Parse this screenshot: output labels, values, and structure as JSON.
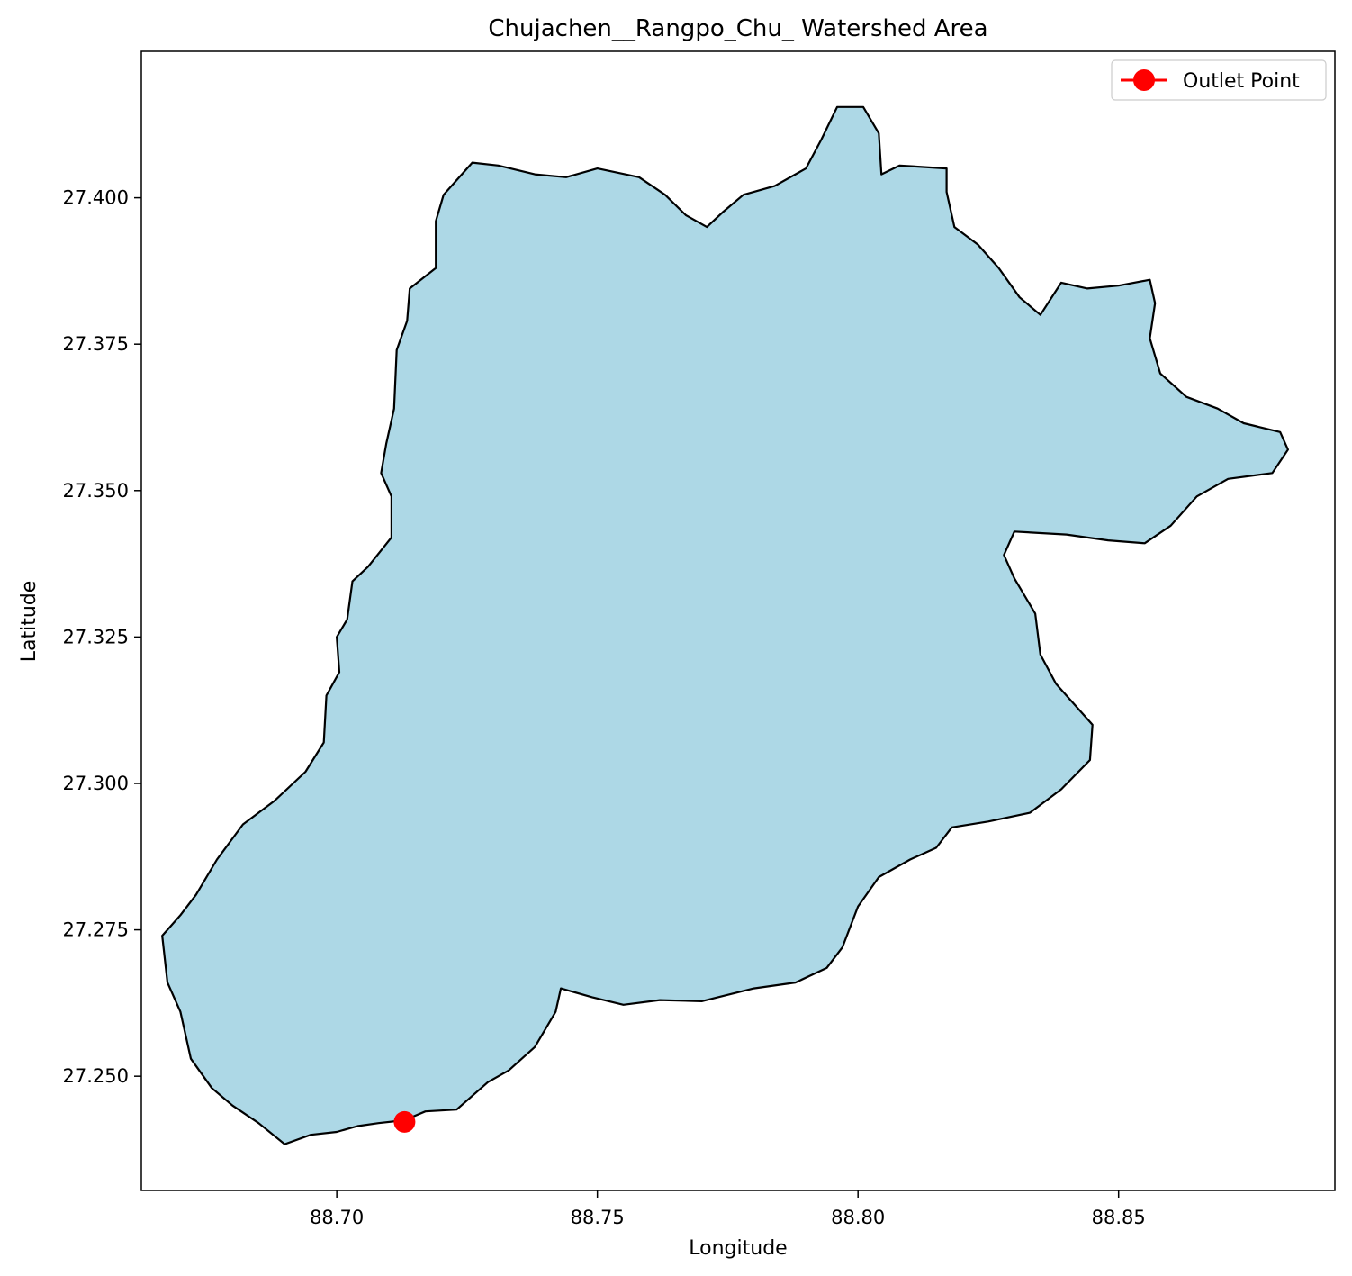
{
  "chart_data": {
    "type": "map",
    "title": "Chujachen__Rangpo_Chu_ Watershed Area",
    "xlabel": "Longitude",
    "ylabel": "Latitude",
    "xlim": [
      88.6625,
      88.8915
    ],
    "ylim": [
      27.2305,
      27.425
    ],
    "x_ticks": [
      88.7,
      88.75,
      88.8,
      88.85
    ],
    "x_tick_labels": [
      "88.70",
      "88.75",
      "88.80",
      "88.85"
    ],
    "y_ticks": [
      27.25,
      27.275,
      27.3,
      27.325,
      27.35,
      27.375,
      27.4
    ],
    "y_tick_labels": [
      "27.250",
      "27.275",
      "27.300",
      "27.325",
      "27.350",
      "27.375",
      "27.400"
    ],
    "grid": false,
    "legend": {
      "placement": "top-right",
      "entries": [
        {
          "label": "Outlet Point",
          "color": "#ff0000"
        }
      ]
    },
    "colors": {
      "fill": "#add8e6",
      "edge": "#000000",
      "outlet": "#ff0000"
    },
    "outlet_point": {
      "lon": 88.713,
      "lat": 27.2422
    },
    "watershed_boundary": [
      [
        88.69,
        27.2384
      ],
      [
        88.695,
        27.24
      ],
      [
        88.7,
        27.2405
      ],
      [
        88.704,
        27.2415
      ],
      [
        88.708,
        27.242
      ],
      [
        88.713,
        27.2425
      ],
      [
        88.717,
        27.244
      ],
      [
        88.723,
        27.2443
      ],
      [
        88.729,
        27.249
      ],
      [
        88.733,
        27.251
      ],
      [
        88.738,
        27.255
      ],
      [
        88.742,
        27.261
      ],
      [
        88.743,
        27.265
      ],
      [
        88.749,
        27.2635
      ],
      [
        88.755,
        27.2622
      ],
      [
        88.762,
        27.263
      ],
      [
        88.77,
        27.2628
      ],
      [
        88.78,
        27.265
      ],
      [
        88.788,
        27.266
      ],
      [
        88.794,
        27.2685
      ],
      [
        88.797,
        27.272
      ],
      [
        88.8,
        27.279
      ],
      [
        88.804,
        27.284
      ],
      [
        88.81,
        27.287
      ],
      [
        88.815,
        27.289
      ],
      [
        88.818,
        27.2925
      ],
      [
        88.825,
        27.2935
      ],
      [
        88.833,
        27.295
      ],
      [
        88.839,
        27.299
      ],
      [
        88.8445,
        27.304
      ],
      [
        88.845,
        27.31
      ],
      [
        88.838,
        27.317
      ],
      [
        88.835,
        27.322
      ],
      [
        88.834,
        27.329
      ],
      [
        88.83,
        27.335
      ],
      [
        88.828,
        27.339
      ],
      [
        88.83,
        27.343
      ],
      [
        88.84,
        27.3425
      ],
      [
        88.848,
        27.3415
      ],
      [
        88.855,
        27.341
      ],
      [
        88.86,
        27.344
      ],
      [
        88.865,
        27.349
      ],
      [
        88.871,
        27.352
      ],
      [
        88.8795,
        27.353
      ],
      [
        88.8825,
        27.357
      ],
      [
        88.881,
        27.36
      ],
      [
        88.874,
        27.3615
      ],
      [
        88.869,
        27.364
      ],
      [
        88.863,
        27.366
      ],
      [
        88.858,
        27.37
      ],
      [
        88.856,
        27.376
      ],
      [
        88.857,
        27.382
      ],
      [
        88.856,
        27.386
      ],
      [
        88.85,
        27.385
      ],
      [
        88.844,
        27.3845
      ],
      [
        88.839,
        27.3855
      ],
      [
        88.835,
        27.38
      ],
      [
        88.831,
        27.383
      ],
      [
        88.827,
        27.388
      ],
      [
        88.823,
        27.392
      ],
      [
        88.8185,
        27.395
      ],
      [
        88.817,
        27.401
      ],
      [
        88.817,
        27.405
      ],
      [
        88.808,
        27.4055
      ],
      [
        88.8045,
        27.404
      ],
      [
        88.804,
        27.411
      ],
      [
        88.801,
        27.4155
      ],
      [
        88.796,
        27.4155
      ],
      [
        88.793,
        27.41
      ],
      [
        88.79,
        27.405
      ],
      [
        88.784,
        27.402
      ],
      [
        88.778,
        27.4005
      ],
      [
        88.774,
        27.3975
      ],
      [
        88.771,
        27.395
      ],
      [
        88.767,
        27.397
      ],
      [
        88.763,
        27.4005
      ],
      [
        88.758,
        27.4035
      ],
      [
        88.75,
        27.405
      ],
      [
        88.744,
        27.4035
      ],
      [
        88.738,
        27.404
      ],
      [
        88.731,
        27.4055
      ],
      [
        88.726,
        27.406
      ],
      [
        88.7205,
        27.4005
      ],
      [
        88.719,
        27.396
      ],
      [
        88.719,
        27.388
      ],
      [
        88.714,
        27.3845
      ],
      [
        88.7135,
        27.379
      ],
      [
        88.7115,
        27.374
      ],
      [
        88.711,
        27.364
      ],
      [
        88.7095,
        27.358
      ],
      [
        88.7085,
        27.353
      ],
      [
        88.7105,
        27.349
      ],
      [
        88.7105,
        27.342
      ],
      [
        88.706,
        27.337
      ],
      [
        88.703,
        27.3345
      ],
      [
        88.702,
        27.328
      ],
      [
        88.7,
        27.325
      ],
      [
        88.7005,
        27.319
      ],
      [
        88.698,
        27.315
      ],
      [
        88.6975,
        27.307
      ],
      [
        88.694,
        27.302
      ],
      [
        88.688,
        27.297
      ],
      [
        88.682,
        27.293
      ],
      [
        88.677,
        27.287
      ],
      [
        88.673,
        27.281
      ],
      [
        88.67,
        27.2775
      ],
      [
        88.6665,
        27.274
      ],
      [
        88.6675,
        27.266
      ],
      [
        88.67,
        27.261
      ],
      [
        88.672,
        27.253
      ],
      [
        88.676,
        27.248
      ],
      [
        88.68,
        27.245
      ],
      [
        88.685,
        27.242
      ],
      [
        88.69,
        27.2384
      ]
    ]
  }
}
